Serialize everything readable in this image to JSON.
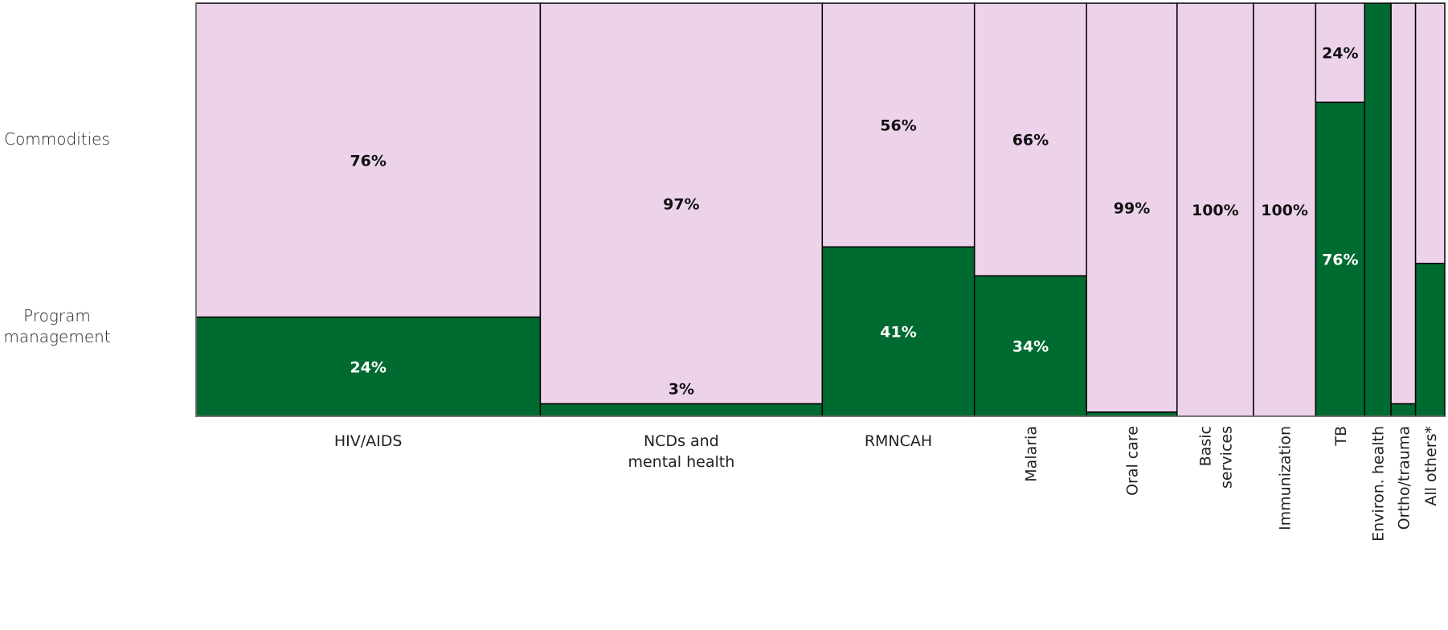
{
  "chart_data": {
    "type": "marimekko",
    "row_labels": {
      "commodities": "Commodities",
      "program_management_line1": "Program",
      "program_management_line2": "management"
    },
    "series": [
      {
        "name": "Commodities",
        "color": "#ecd3ea"
      },
      {
        "name": "Program management",
        "color": "#006b31"
      }
    ],
    "categories": [
      {
        "label": [
          "HIV/AIDS"
        ],
        "rotated": false,
        "share": 0.2389,
        "commodities": 76,
        "program": 24,
        "labels": {
          "commodities": "76%",
          "program": "24%"
        }
      },
      {
        "label": [
          "NCDs and",
          "mental health"
        ],
        "rotated": false,
        "share": 0.1957,
        "commodities": 97,
        "program": 3,
        "labels": {
          "commodities": "97%",
          "program": "3%"
        }
      },
      {
        "label": [
          "RMNCAH"
        ],
        "rotated": false,
        "share": 0.1056,
        "commodities": 56,
        "program": 41,
        "labels": {
          "commodities": "56%",
          "program": "41%"
        }
      },
      {
        "label": [
          "Malaria"
        ],
        "rotated": true,
        "share": 0.0778,
        "commodities": 66,
        "program": 34,
        "labels": {
          "commodities": "66%",
          "program": "34%"
        }
      },
      {
        "label": [
          "Oral care"
        ],
        "rotated": true,
        "share": 0.0628,
        "commodities": 99,
        "program": 1,
        "labels": {
          "commodities": "99%",
          "program": ""
        }
      },
      {
        "label": [
          "Basic",
          "services"
        ],
        "rotated": true,
        "share": 0.053,
        "commodities": 100,
        "program": 0,
        "labels": {
          "commodities": "100%",
          "program": ""
        }
      },
      {
        "label": [
          "Immunization"
        ],
        "rotated": true,
        "share": 0.0432,
        "commodities": 100,
        "program": 0,
        "labels": {
          "commodities": "100%",
          "program": ""
        }
      },
      {
        "label": [
          "TB"
        ],
        "rotated": true,
        "share": 0.034,
        "commodities": 24,
        "program": 76,
        "labels": {
          "commodities": "24%",
          "program": "76%"
        }
      },
      {
        "label": [
          "Environ. health"
        ],
        "rotated": true,
        "share": 0.0183,
        "commodities": 0,
        "program": 100,
        "labels": {
          "commodities": "",
          "program": ""
        }
      },
      {
        "label": [
          "Ortho/trauma"
        ],
        "rotated": true,
        "share": 0.017,
        "commodities": 97,
        "program": 3,
        "labels": {
          "commodities": "",
          "program": ""
        }
      },
      {
        "label": [
          "All others*"
        ],
        "rotated": true,
        "share": 0.0203,
        "commodities": 63,
        "program": 37,
        "labels": {
          "commodities": "",
          "program": ""
        }
      }
    ]
  }
}
